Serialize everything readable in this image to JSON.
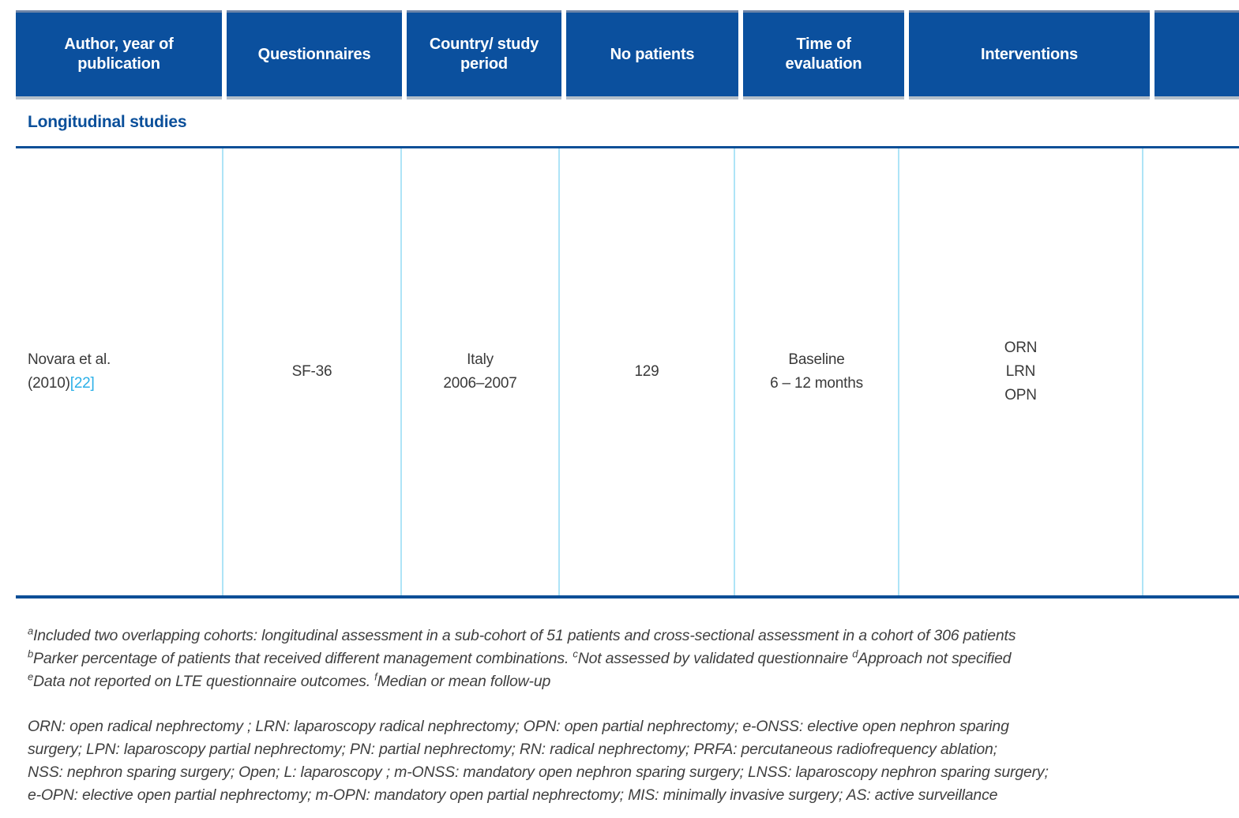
{
  "table": {
    "headers": [
      {
        "label": "Author, year of publication"
      },
      {
        "label": "Questionnaires"
      },
      {
        "label": "Country/ study period"
      },
      {
        "label": "No patients"
      },
      {
        "label": "Time of evaluation"
      },
      {
        "label": "Interventions"
      },
      {
        "label": ""
      }
    ],
    "section_label": "Longitudinal studies",
    "row": {
      "author_line1": "Novara et al.",
      "author_year": "(2010)",
      "author_citation": "[22]",
      "questionnaires": "SF-36",
      "country_line1": "Italy",
      "country_line2": "2006–2007",
      "no_patients": "129",
      "time_line1": "Baseline",
      "time_line2": "6 – 12 months",
      "interventions": [
        "ORN",
        "LRN",
        "OPN"
      ]
    }
  },
  "footnotes": {
    "line1": {
      "sup1": "a",
      "text1": "Included two overlapping cohorts: longitudinal assessment in a sub-cohort of 51 patients and cross-sectional assessment in a cohort of 306 patients"
    },
    "line2": {
      "sup1": "b",
      "text1": "Parker percentage of patients that received different management combinations. ",
      "sup2": "c",
      "text2": "Not assessed by validated questionnaire ",
      "sup3": "d",
      "text3": "Approach not specified"
    },
    "line3": {
      "sup1": "e",
      "text1": "Data not reported on LTE questionnaire outcomes. ",
      "sup2": "f",
      "text2": "Median or mean follow-up"
    }
  },
  "abbreviations": {
    "line1": "ORN: open radical nephrectomy ; LRN: laparoscopy radical nephrectomy;  OPN: open partial nephrectomy; e-ONSS: elective open nephron sparing",
    "line2": "surgery; LPN: laparoscopy partial nephrectomy; PN: partial nephrectomy; RN: radical nephrectomy; PRFA: percutaneous radiofrequency ablation;",
    "line3": "NSS: nephron sparing surgery; Open; L: laparoscopy ; m-ONSS: mandatory open nephron sparing surgery; LNSS: laparoscopy nephron sparing surgery;",
    "line4": "e-OPN: elective open partial nephrectomy; m-OPN: mandatory open partial nephrectomy;  MIS: minimally invasive surgery;  AS: active surveillance"
  },
  "colors": {
    "header_bg": "#0b509e",
    "header_text": "#ffffff",
    "rule_navy": "#0d4f97",
    "column_line_light_blue": "#aee4f7",
    "citation_link": "#2bb0e8",
    "body_text": "#3a3a3a"
  }
}
